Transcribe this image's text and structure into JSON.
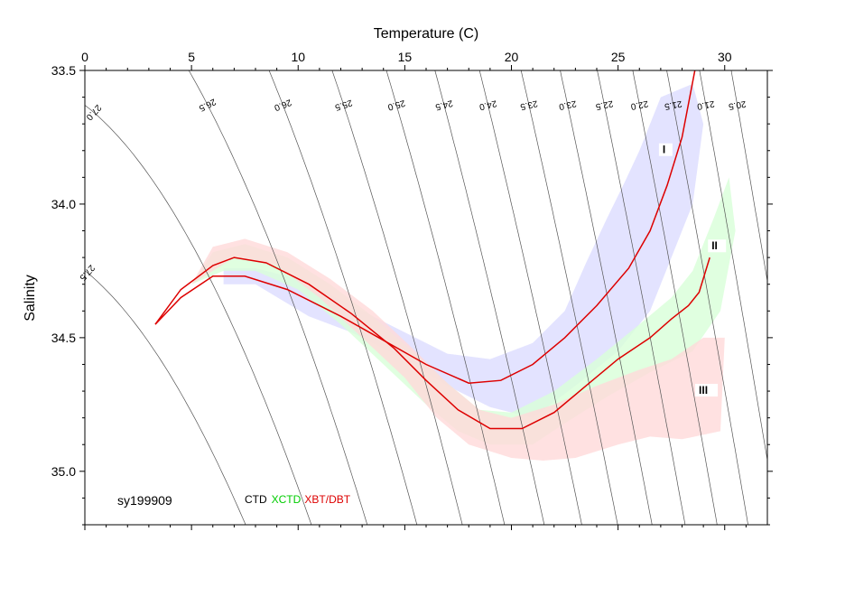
{
  "chart_data": {
    "type": "line",
    "xlabel": "Temperature (C)",
    "ylabel": "Salinity",
    "xlim": [
      0,
      32
    ],
    "ylim": [
      35.2,
      33.5
    ],
    "x_ticks": [
      0,
      5,
      10,
      15,
      20,
      25,
      30
    ],
    "y_ticks": [
      33.5,
      34.0,
      34.5,
      35.0
    ],
    "y_tick_labels": [
      "33.5",
      "34.0",
      "34.5",
      "35.0"
    ],
    "y_axis_inverted": true,
    "cruise_label": "sy199909",
    "legend": [
      {
        "name": "CTD",
        "color": "#000000"
      },
      {
        "name": "XCTD",
        "color": "#00cc00"
      },
      {
        "name": "XBT/DBT",
        "color": "#dd0000"
      }
    ],
    "isopycnal_labels": [
      "20.5",
      "21.0",
      "21.5",
      "22.0",
      "22.5",
      "23.0",
      "23.5",
      "24.0",
      "24.5",
      "25.0",
      "25.5",
      "26.0",
      "26.5",
      "27.0",
      "27.5"
    ],
    "region_labels": [
      "I",
      "II",
      "III"
    ],
    "series": [
      {
        "name": "I",
        "color": "#dd0000",
        "points": [
          [
            3.3,
            34.45
          ],
          [
            4.5,
            34.35
          ],
          [
            6.0,
            34.27
          ],
          [
            7.5,
            34.27
          ],
          [
            9.5,
            34.32
          ],
          [
            12.0,
            34.42
          ],
          [
            14.0,
            34.51
          ],
          [
            16.0,
            34.6
          ],
          [
            18.0,
            34.67
          ],
          [
            19.5,
            34.66
          ],
          [
            21.0,
            34.6
          ],
          [
            22.5,
            34.5
          ],
          [
            24.0,
            34.38
          ],
          [
            25.5,
            34.24
          ],
          [
            26.5,
            34.1
          ],
          [
            27.3,
            33.93
          ],
          [
            28.0,
            33.75
          ],
          [
            28.6,
            33.5
          ]
        ],
        "band_color": "#dcdcff",
        "band_upper": [
          [
            26.0,
            33.8
          ],
          [
            27.0,
            33.6
          ],
          [
            28.5,
            33.55
          ],
          [
            29.0,
            33.7
          ],
          [
            28.5,
            34.0
          ],
          [
            27.5,
            34.2
          ],
          [
            26.5,
            34.4
          ],
          [
            25.0,
            34.55
          ],
          [
            23.0,
            34.68
          ],
          [
            21.0,
            34.8
          ],
          [
            19.0,
            34.76
          ],
          [
            17.0,
            34.68
          ],
          [
            15.0,
            34.58
          ],
          [
            12.5,
            34.48
          ],
          [
            10.5,
            34.42
          ],
          [
            8.0,
            34.3
          ],
          [
            6.5,
            34.3
          ]
        ],
        "band_lower": [
          [
            6.5,
            34.24
          ],
          [
            8.0,
            34.24
          ],
          [
            10.0,
            34.28
          ],
          [
            12.5,
            34.38
          ],
          [
            15.0,
            34.48
          ],
          [
            17.0,
            34.56
          ],
          [
            19.0,
            34.58
          ],
          [
            21.0,
            34.52
          ],
          [
            22.5,
            34.4
          ],
          [
            23.5,
            34.22
          ],
          [
            24.5,
            34.05
          ],
          [
            25.3,
            33.92
          ],
          [
            26.0,
            33.8
          ]
        ]
      },
      {
        "name": "II",
        "color": "#dd0000",
        "points": [
          [
            3.3,
            34.45
          ],
          [
            4.5,
            34.32
          ],
          [
            6.0,
            34.23
          ],
          [
            7.0,
            34.2
          ],
          [
            8.5,
            34.22
          ],
          [
            10.5,
            34.3
          ],
          [
            12.5,
            34.41
          ],
          [
            14.5,
            34.54
          ],
          [
            16.0,
            34.66
          ],
          [
            17.5,
            34.77
          ],
          [
            19.0,
            34.84
          ],
          [
            20.5,
            34.84
          ],
          [
            22.0,
            34.78
          ],
          [
            23.5,
            34.68
          ],
          [
            25.0,
            34.58
          ],
          [
            26.5,
            34.5
          ],
          [
            27.5,
            34.43
          ],
          [
            28.3,
            34.38
          ],
          [
            28.8,
            34.33
          ],
          [
            29.3,
            34.2
          ]
        ],
        "band_color": "#d8ffd8",
        "band_upper": [
          [
            29.5,
            34.05
          ],
          [
            30.2,
            33.9
          ],
          [
            30.5,
            34.1
          ],
          [
            29.8,
            34.4
          ],
          [
            28.5,
            34.55
          ],
          [
            26.5,
            34.63
          ],
          [
            24.5,
            34.72
          ],
          [
            22.5,
            34.82
          ],
          [
            21.0,
            34.9
          ],
          [
            19.0,
            34.9
          ],
          [
            17.5,
            34.85
          ],
          [
            16.0,
            34.75
          ],
          [
            14.0,
            34.6
          ],
          [
            12.0,
            34.45
          ],
          [
            10.0,
            34.32
          ],
          [
            8.0,
            34.25
          ],
          [
            6.5,
            34.25
          ],
          [
            5.0,
            34.3
          ]
        ],
        "band_lower": [
          [
            5.0,
            34.3
          ],
          [
            6.0,
            34.18
          ],
          [
            7.5,
            34.15
          ],
          [
            9.5,
            34.2
          ],
          [
            11.5,
            34.3
          ],
          [
            13.5,
            34.42
          ],
          [
            15.5,
            34.56
          ],
          [
            17.0,
            34.67
          ],
          [
            18.5,
            34.77
          ],
          [
            20.0,
            34.78
          ],
          [
            22.0,
            34.7
          ],
          [
            24.0,
            34.58
          ],
          [
            26.0,
            34.45
          ],
          [
            27.5,
            34.35
          ],
          [
            28.5,
            34.25
          ],
          [
            29.5,
            34.05
          ]
        ]
      },
      {
        "name": "III",
        "color": "#ffd8d8",
        "points": [],
        "band_color": "#ffdada",
        "band_upper": [
          [
            29.0,
            34.5
          ],
          [
            30.0,
            34.5
          ],
          [
            29.8,
            34.85
          ],
          [
            28.0,
            34.88
          ],
          [
            26.5,
            34.87
          ],
          [
            25.0,
            34.9
          ],
          [
            23.0,
            34.95
          ],
          [
            21.5,
            34.96
          ],
          [
            20.0,
            34.95
          ],
          [
            18.0,
            34.9
          ],
          [
            16.5,
            34.8
          ],
          [
            15.0,
            34.65
          ],
          [
            13.0,
            34.5
          ],
          [
            11.0,
            34.35
          ],
          [
            9.0,
            34.23
          ],
          [
            7.0,
            34.2
          ],
          [
            5.0,
            34.3
          ]
        ],
        "band_lower": [
          [
            5.0,
            34.3
          ],
          [
            6.0,
            34.16
          ],
          [
            7.5,
            34.13
          ],
          [
            9.5,
            34.18
          ],
          [
            11.5,
            34.28
          ],
          [
            13.5,
            34.4
          ],
          [
            15.5,
            34.55
          ],
          [
            17.0,
            34.67
          ],
          [
            18.5,
            34.77
          ],
          [
            20.0,
            34.8
          ],
          [
            22.0,
            34.75
          ],
          [
            24.0,
            34.68
          ],
          [
            26.0,
            34.62
          ],
          [
            27.5,
            34.58
          ],
          [
            29.0,
            34.5
          ]
        ]
      }
    ]
  }
}
